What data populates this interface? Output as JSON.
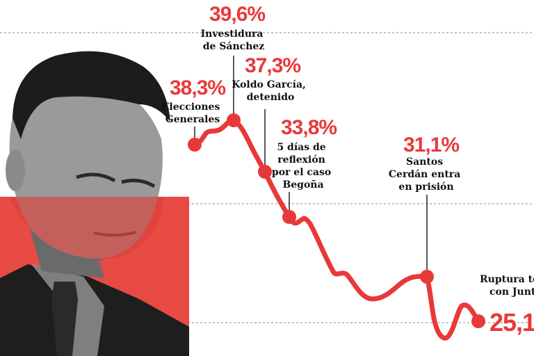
{
  "chart_data": {
    "type": "line",
    "series_color": "#e8393a",
    "band_color": "#e84a44",
    "annotations": [
      {
        "value": "38,3%",
        "lines": [
          "Elecciones",
          "Generales"
        ]
      },
      {
        "value": "39,6%",
        "lines": [
          "Investidura",
          "de Sánchez"
        ]
      },
      {
        "value": "37,3%",
        "lines": [
          "Koldo García,",
          "detenido"
        ]
      },
      {
        "value": "33,8%",
        "lines": [
          "5 días de",
          "reflexión",
          "por el caso",
          "Begoña"
        ]
      },
      {
        "value": "31,1%",
        "lines": [
          "Santos",
          "Cerdán entra",
          "en prisión"
        ]
      },
      {
        "value": "25,1",
        "lines": [
          "Ruptura to",
          "con Junt"
        ]
      }
    ]
  }
}
